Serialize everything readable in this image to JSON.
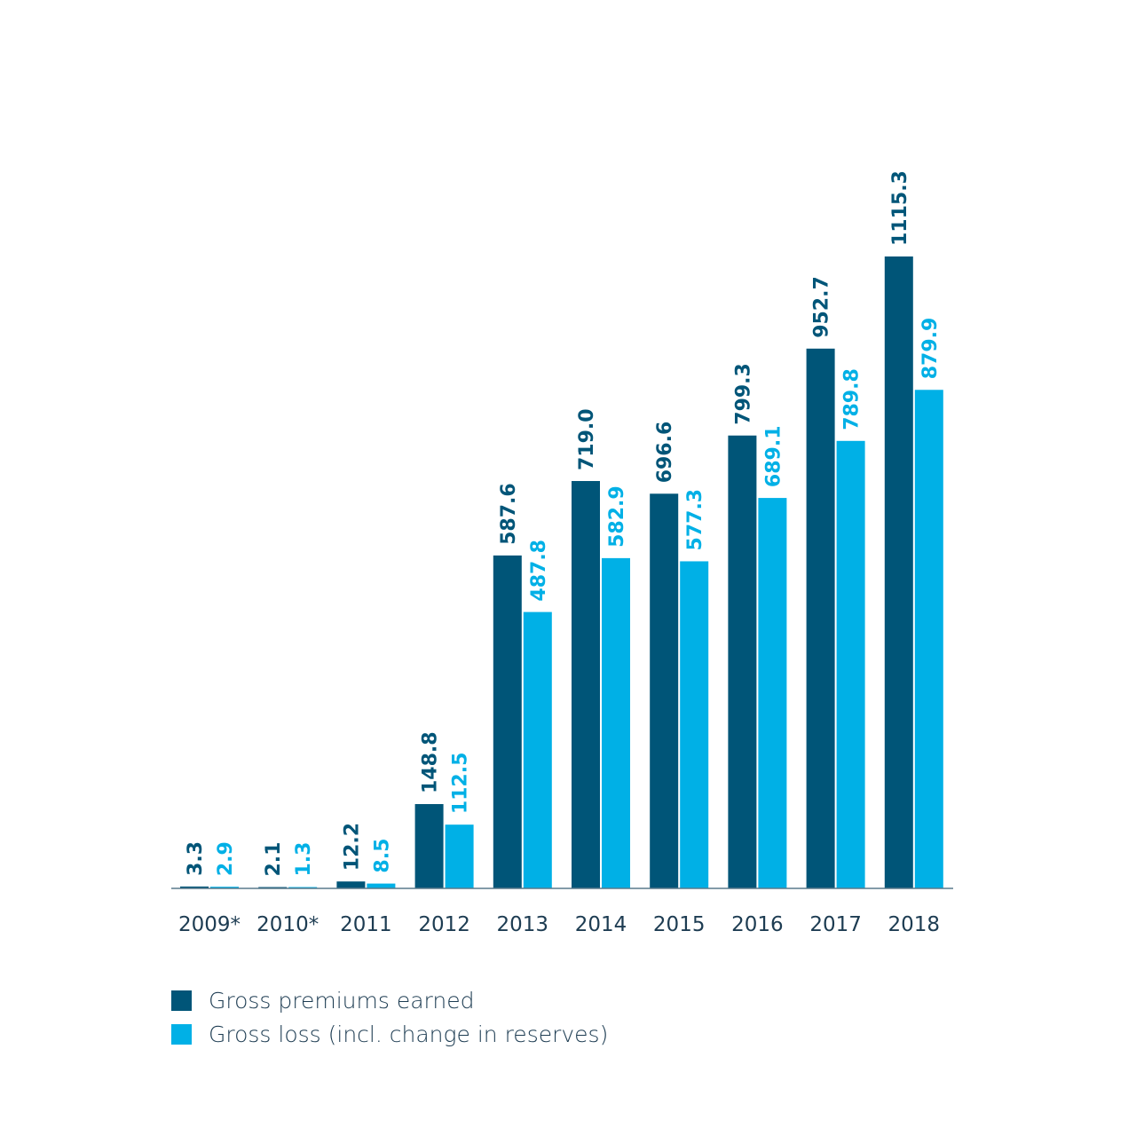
{
  "chart_data": {
    "type": "bar",
    "title": "",
    "xlabel": "",
    "ylabel": "",
    "categories": [
      "2009*",
      "2010*",
      "2011",
      "2012",
      "2013",
      "2014",
      "2015",
      "2016",
      "2017",
      "2018"
    ],
    "series": [
      {
        "name": "Gross premiums earned",
        "color": "#005578",
        "values": [
          3.3,
          2.1,
          12.2,
          148.8,
          587.6,
          719.0,
          696.6,
          799.3,
          952.7,
          1115.3
        ],
        "labels": [
          "3.3",
          "2.1",
          "12.2",
          "148.8",
          "587.6",
          "719.0",
          "696.6",
          "799.3",
          "952.7",
          "1115.3"
        ]
      },
      {
        "name": "Gross loss (incl. change in reserves)",
        "color": "#00b0e6",
        "values": [
          2.9,
          1.3,
          8.5,
          112.5,
          487.8,
          582.9,
          577.3,
          689.1,
          789.8,
          879.9
        ],
        "labels": [
          "2.9",
          "1.3",
          "8.5",
          "112.5",
          "487.8",
          "582.9",
          "577.3",
          "689.1",
          "789.8",
          "879.9"
        ]
      }
    ],
    "ylim": [
      0,
      1115.3
    ],
    "grid": false,
    "legend_position": "bottom-left",
    "axis_color": "#5a7a8c",
    "tick_label_color": "#1d3c52"
  }
}
